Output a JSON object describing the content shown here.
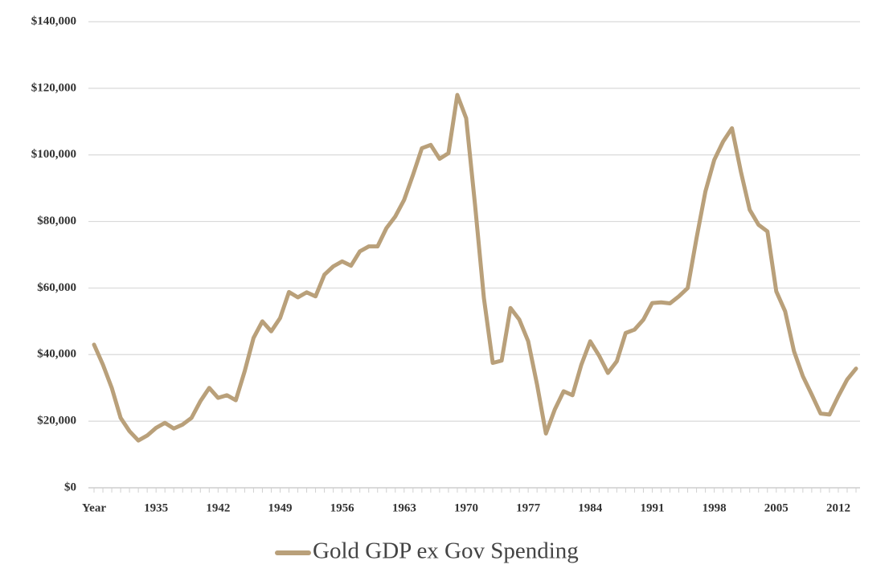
{
  "chart_data": {
    "type": "line",
    "categories": [
      "Year",
      null,
      null,
      null,
      null,
      null,
      null,
      "1935",
      null,
      null,
      null,
      null,
      null,
      null,
      "1942",
      null,
      null,
      null,
      null,
      null,
      null,
      "1949",
      null,
      null,
      null,
      null,
      null,
      null,
      "1956",
      null,
      null,
      null,
      null,
      null,
      null,
      "1963",
      null,
      null,
      null,
      null,
      null,
      null,
      "1970",
      null,
      null,
      null,
      null,
      null,
      null,
      "1977",
      null,
      null,
      null,
      null,
      null,
      null,
      "1984",
      null,
      null,
      null,
      null,
      null,
      null,
      "1991",
      null,
      null,
      null,
      null,
      null,
      null,
      "1998",
      null,
      null,
      null,
      null,
      null,
      null,
      "2005",
      null,
      null,
      null,
      null,
      null,
      null,
      "2012",
      null,
      null
    ],
    "series": [
      {
        "name": "Gold GDP ex Gov Spending",
        "color": "#b9a07a",
        "values": [
          43000,
          37000,
          30000,
          21000,
          17000,
          14200,
          15700,
          18000,
          19500,
          17800,
          19000,
          21000,
          26000,
          30000,
          27000,
          27800,
          26300,
          35000,
          45000,
          50000,
          47000,
          51000,
          58800,
          57200,
          58700,
          57500,
          64000,
          66500,
          68000,
          66700,
          71000,
          72500,
          72500,
          78000,
          81500,
          86500,
          94000,
          102000,
          103000,
          98800,
          100500,
          118000,
          111000,
          85000,
          57000,
          37500,
          38200,
          54000,
          50500,
          44000,
          31000,
          16300,
          23500,
          29000,
          27800,
          37000,
          44000,
          39700,
          34500,
          38000,
          46500,
          47500,
          50500,
          55500,
          55700,
          55400,
          57500,
          60000,
          75000,
          89000,
          98500,
          104000,
          108000,
          95000,
          83500,
          79000,
          77000,
          59000,
          53000,
          41000,
          33500,
          28000,
          22300,
          22000,
          27500,
          32500,
          35800
        ]
      }
    ],
    "ylim": [
      0,
      140000
    ],
    "yticks": [
      {
        "value": 0,
        "label": "$0"
      },
      {
        "value": 20000,
        "label": "$20,000"
      },
      {
        "value": 40000,
        "label": "$40,000"
      },
      {
        "value": 60000,
        "label": "$60,000"
      },
      {
        "value": 80000,
        "label": "$80,000"
      },
      {
        "value": 100000,
        "label": "$100,000"
      },
      {
        "value": 120000,
        "label": "$120,000"
      },
      {
        "value": 140000,
        "label": "$140,000"
      }
    ],
    "grid": true,
    "legend": "bottom"
  }
}
